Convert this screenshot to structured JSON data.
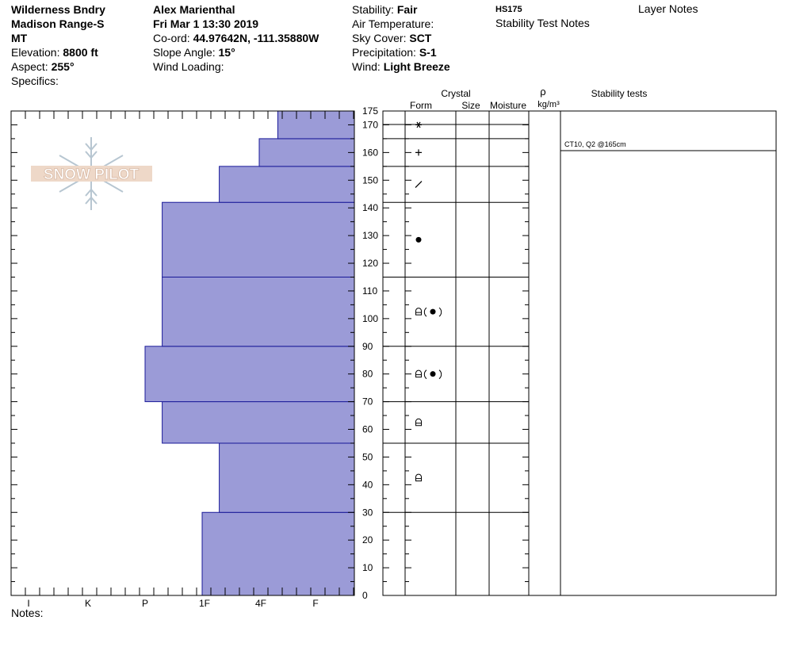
{
  "header": {
    "location": [
      "Wilderness Bndry",
      "Madison Range-S",
      "MT"
    ],
    "elevation_label": "Elevation:",
    "elevation_value": "8800 ft",
    "aspect_label": "Aspect:",
    "aspect_value": "255°",
    "specifics_label": "Specifics:",
    "observer": "Alex Marienthal",
    "datetime": "Fri Mar 1 13:30 2019",
    "coord_label": "Co-ord:",
    "coord_value": "44.97642N, -111.35880W",
    "slope_label": "Slope Angle:",
    "slope_value": "15°",
    "wind_loading_label": "Wind Loading:",
    "stability_label": "Stability:",
    "stability_value": "Fair",
    "air_temp_label": "Air Temperature:",
    "sky_label": "Sky Cover:",
    "sky_value": "SCT",
    "precip_label": "Precipitation:",
    "precip_value": "S-1",
    "wind_label": "Wind:",
    "wind_value": "Light Breeze",
    "hs": "HS175",
    "stability_test_notes": "Stability Test Notes",
    "layer_notes": "Layer Notes"
  },
  "logo_text": "SNOW PILOT",
  "notes_label": "Notes:",
  "columns": {
    "crystal": "Crystal",
    "form": "Form",
    "size": "Size",
    "moisture": "Moisture",
    "rho": "ρ",
    "density_unit": "kg/m³",
    "stability_tests": "Stability tests"
  },
  "stability_test_entries": [
    {
      "text": "CT10, Q2 @165cm",
      "height": 165
    }
  ],
  "chart_data": {
    "type": "bar",
    "orientation": "horizontal",
    "ylim": [
      0,
      175
    ],
    "y_ticks": [
      0,
      10,
      20,
      30,
      40,
      50,
      60,
      70,
      80,
      90,
      100,
      110,
      120,
      130,
      140,
      150,
      160,
      170,
      175
    ],
    "hardness_ticks": [
      "I",
      "K",
      "P",
      "1F",
      "4F",
      "F"
    ],
    "hardness_scale": [
      "F",
      "4F",
      "1F",
      "P",
      "K",
      "I"
    ],
    "layers": [
      {
        "bottom": 0,
        "top": 30,
        "hardness": 2.0,
        "form": ""
      },
      {
        "bottom": 30,
        "top": 55,
        "hardness": 1.7,
        "form": "rounding-faceted"
      },
      {
        "bottom": 55,
        "top": 70,
        "hardness": 2.7,
        "form": "rounding-faceted"
      },
      {
        "bottom": 70,
        "top": 90,
        "hardness": 3.0,
        "form": "rounding-faceted-melt"
      },
      {
        "bottom": 90,
        "top": 115,
        "hardness": 2.7,
        "form": "rounding-faceted-melt"
      },
      {
        "bottom": 115,
        "top": 142,
        "hardness": 2.7,
        "form": "melt-form"
      },
      {
        "bottom": 142,
        "top": 155,
        "hardness": 1.7,
        "form": "decomposing"
      },
      {
        "bottom": 155,
        "top": 165,
        "hardness": 1.0,
        "form": "precip-particles"
      },
      {
        "bottom": 165,
        "top": 175,
        "hardness": 0.67,
        "form": "surface-hoar-or-new"
      }
    ],
    "bar_color": "#9b9bd7",
    "bar_stroke": "#1a1a99"
  }
}
